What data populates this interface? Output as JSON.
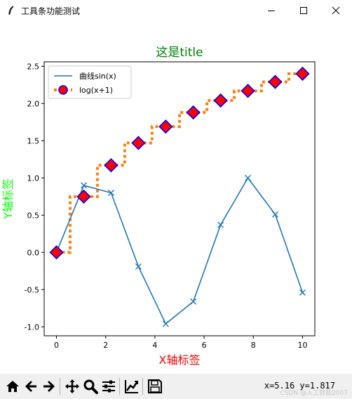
{
  "window": {
    "title": "工具条功能测试",
    "icon": "feather-icon",
    "controls": [
      "minimize-icon",
      "maximize-icon",
      "close-icon"
    ]
  },
  "toolbar": {
    "buttons": [
      "home-icon",
      "back-icon",
      "forward-icon",
      "pan-icon",
      "zoom-icon",
      "configure-subplots-icon",
      "edit-axis-icon",
      "save-icon"
    ],
    "coords": "x=5.16 y=1.817",
    "watermark": "CSDN @人工智能2007"
  },
  "colors": {
    "line1": "#1f77b4",
    "line2": "#ff7f0e",
    "marker_face": "#ff0000",
    "marker_edge": "#0000ff",
    "title": "#008000",
    "xlabel": "#ff0000",
    "ylabel": "#00ff00"
  },
  "chart_data": {
    "type": "line",
    "title": "这是title",
    "xlabel": "X轴标签",
    "ylabel": "Y轴标签",
    "xlim": [
      -0.5,
      10.5
    ],
    "ylim": [
      -1.12,
      2.56
    ],
    "xticks": [
      0,
      2,
      4,
      6,
      8,
      10
    ],
    "yticks": [
      -1.0,
      -0.5,
      0.0,
      0.5,
      1.0,
      1.5,
      2.0,
      2.5
    ],
    "ytick_labels": [
      "-1.0",
      "-0.5",
      "0.0",
      "0.5",
      "1.0",
      "1.5",
      "2.0",
      "2.5"
    ],
    "grid": false,
    "legend": "upper left",
    "series": [
      {
        "name": "曲线sin(x)",
        "x": [
          0,
          1.11,
          2.22,
          3.33,
          4.44,
          5.56,
          6.67,
          7.78,
          8.89,
          10
        ],
        "values": [
          0,
          0.9,
          0.8,
          -0.19,
          -0.96,
          -0.66,
          0.37,
          1.0,
          0.51,
          -0.54
        ],
        "style": "solid",
        "marker": "x"
      },
      {
        "name": "log(x+1)",
        "x": [
          0,
          1.11,
          2.22,
          3.33,
          4.44,
          5.56,
          6.67,
          7.78,
          8.89,
          10
        ],
        "values": [
          0,
          0.75,
          1.17,
          1.47,
          1.69,
          1.88,
          2.04,
          2.17,
          2.29,
          2.4
        ],
        "style": "dotted-steps",
        "marker": "D"
      }
    ]
  }
}
